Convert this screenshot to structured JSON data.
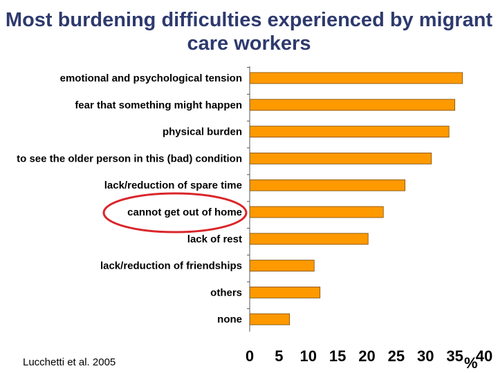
{
  "title": "Most burdening difficulties experienced by migrant care workers",
  "source": "Lucchetti et al. 2005",
  "chart_data": {
    "type": "bar",
    "orientation": "horizontal",
    "title": "Most burdening difficulties experienced by migrant care workers",
    "xlabel": "%",
    "ylabel": "",
    "xlim": [
      0,
      40
    ],
    "xticks": [
      0,
      5,
      10,
      15,
      20,
      25,
      30,
      35,
      40
    ],
    "grid": false,
    "legend": "none",
    "bar_color": "#ff9900",
    "bar_edge_color": "#7a4a00",
    "highlight_color": "#d9262b",
    "highlighted_category": "cannot get out of home",
    "categories": [
      "emotional and psychological tension",
      "fear that something might happen",
      "physical burden",
      "to see the older person in this (bad) condition",
      "lack/reduction of spare time",
      "cannot get out of home",
      "lack of rest",
      "lack/reduction of friendships",
      "others",
      "none"
    ],
    "values": [
      36.3,
      35.0,
      34.0,
      31.0,
      26.5,
      22.8,
      20.2,
      11.0,
      12.0,
      6.8
    ]
  }
}
